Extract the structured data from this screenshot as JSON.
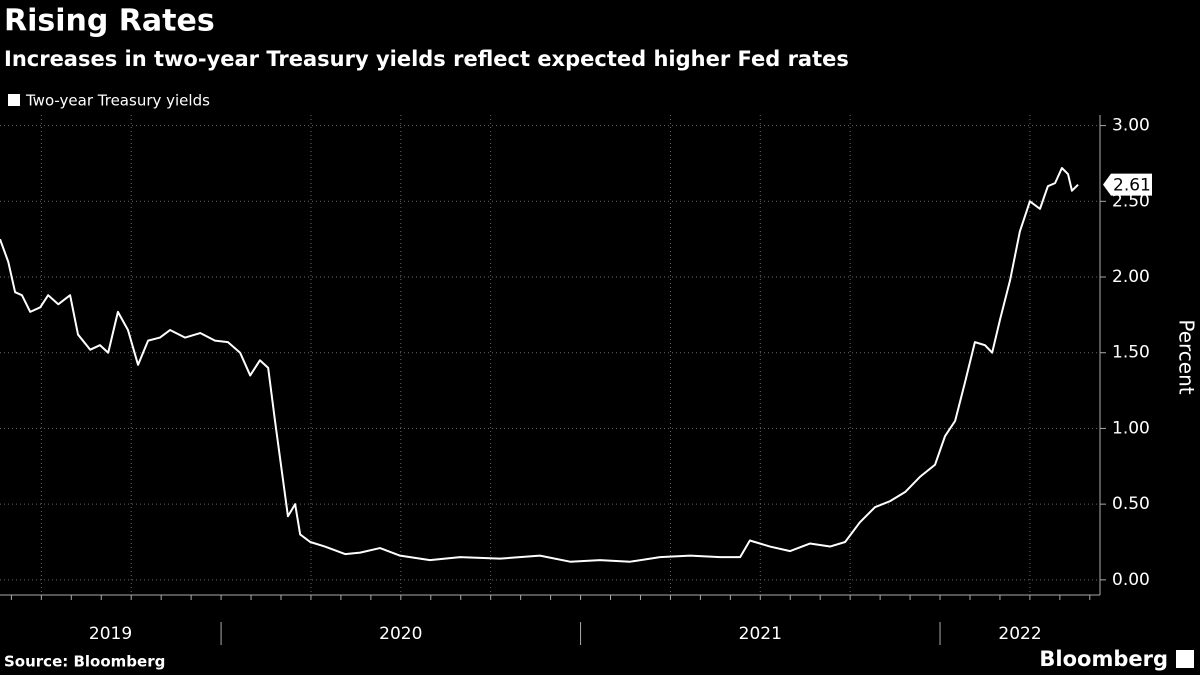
{
  "chart_data": {
    "type": "line",
    "title": "Rising Rates",
    "subtitle": "Increases in two-year Treasury yields reflect expected higher Fed rates",
    "y_label": "Percent",
    "source": "Source: Bloomberg",
    "logo": "Bloomberg",
    "x": [
      2019.385,
      2019.408,
      2019.427,
      2019.446,
      2019.469,
      2019.497,
      2019.519,
      2019.547,
      2019.58,
      2019.602,
      2019.636,
      2019.663,
      2019.686,
      2019.713,
      2019.741,
      2019.769,
      2019.797,
      2019.83,
      2019.858,
      2019.9,
      2019.942,
      2019.983,
      2020.019,
      2020.053,
      2020.081,
      2020.108,
      2020.131,
      2020.15,
      2020.17,
      2020.186,
      2020.206,
      2020.22,
      2020.248,
      2020.289,
      2020.345,
      2020.387,
      2020.442,
      2020.498,
      2020.581,
      2020.665,
      2020.776,
      2020.887,
      2020.971,
      2021.054,
      2021.138,
      2021.221,
      2021.305,
      2021.388,
      2021.444,
      2021.471,
      2021.527,
      2021.583,
      2021.638,
      2021.694,
      2021.736,
      2021.777,
      2021.819,
      2021.861,
      2021.903,
      2021.944,
      2021.986,
      2022.014,
      2022.042,
      2022.069,
      2022.097,
      2022.125,
      2022.145,
      2022.167,
      2022.195,
      2022.222,
      2022.25,
      2022.278,
      2022.3,
      2022.32,
      2022.339,
      2022.356,
      2022.367,
      2022.384
    ],
    "series": [
      {
        "name": "Two-year Treasury yields",
        "color": "#ffffff",
        "values": [
          2.25,
          2.1,
          1.9,
          1.88,
          1.77,
          1.8,
          1.88,
          1.82,
          1.88,
          1.62,
          1.52,
          1.55,
          1.5,
          1.77,
          1.65,
          1.42,
          1.58,
          1.6,
          1.65,
          1.6,
          1.63,
          1.58,
          1.57,
          1.5,
          1.35,
          1.45,
          1.4,
          1.05,
          0.7,
          0.42,
          0.5,
          0.3,
          0.25,
          0.22,
          0.17,
          0.18,
          0.21,
          0.16,
          0.13,
          0.15,
          0.14,
          0.16,
          0.12,
          0.13,
          0.12,
          0.15,
          0.16,
          0.15,
          0.15,
          0.26,
          0.22,
          0.19,
          0.24,
          0.22,
          0.25,
          0.38,
          0.48,
          0.52,
          0.58,
          0.68,
          0.76,
          0.95,
          1.05,
          1.3,
          1.57,
          1.55,
          1.5,
          1.72,
          1.98,
          2.3,
          2.5,
          2.45,
          2.6,
          2.62,
          2.72,
          2.68,
          2.57,
          2.61
        ]
      }
    ],
    "annotation": {
      "label": "2.61",
      "value": 2.61
    },
    "xlim": [
      2019.385,
      2022.445
    ],
    "xticks": [
      {
        "value": 2019,
        "label": "2019"
      },
      {
        "value": 2020,
        "label": "2020"
      },
      {
        "value": 2021,
        "label": "2021"
      },
      {
        "value": 2022,
        "label": "2022"
      }
    ],
    "ylim": [
      -0.1,
      3.07
    ],
    "yticks": [
      {
        "value": 0,
        "label": "0.00"
      },
      {
        "value": 0.5,
        "label": "0.50"
      },
      {
        "value": 1,
        "label": "1.00"
      },
      {
        "value": 1.5,
        "label": "1.50"
      },
      {
        "value": 2,
        "label": "2.00"
      },
      {
        "value": 2.5,
        "label": "2.50"
      },
      {
        "value": 3,
        "label": "3.00"
      }
    ],
    "grid": true
  }
}
